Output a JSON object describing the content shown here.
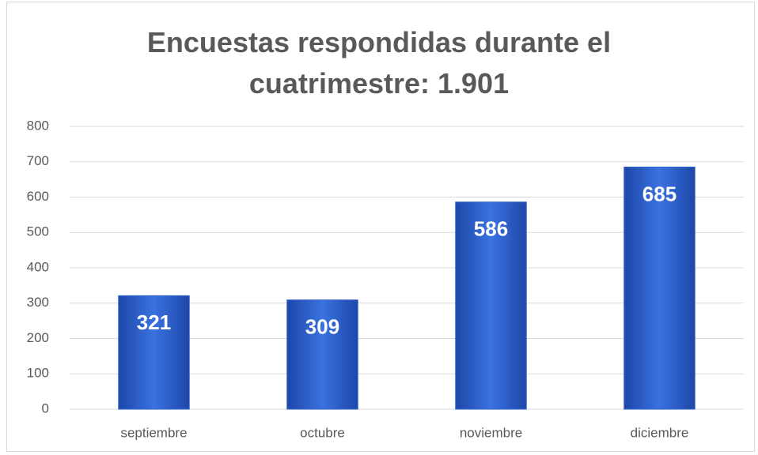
{
  "chart_data": {
    "type": "bar",
    "title": "Encuestas respondidas durante el cuatrimestre: 1.901",
    "categories": [
      "septiembre",
      "octubre",
      "noviembre",
      "diciembre"
    ],
    "values": [
      321,
      309,
      586,
      685
    ],
    "color": "#2e62cc",
    "ylim": [
      0,
      800
    ],
    "yticks": [
      0,
      100,
      200,
      300,
      400,
      500,
      600,
      700,
      800
    ],
    "grid": true
  }
}
